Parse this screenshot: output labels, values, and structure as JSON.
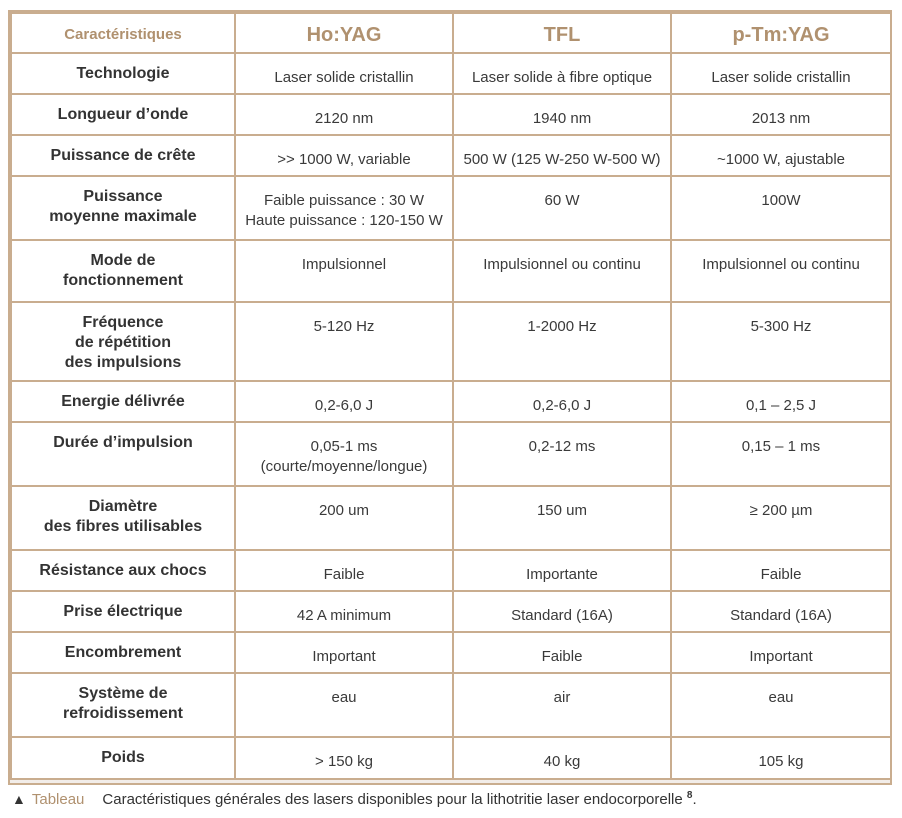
{
  "table": {
    "headers": [
      "Caractéristiques",
      "Ho:YAG",
      "TFL",
      "p-Tm:YAG"
    ],
    "rows": [
      {
        "label": [
          "Technologie"
        ],
        "values": [
          [
            "Laser solide cristallin"
          ],
          [
            "Laser solide à fibre optique"
          ],
          [
            "Laser solide cristallin"
          ]
        ]
      },
      {
        "label": [
          "Longueur d’onde"
        ],
        "values": [
          [
            "2120 nm"
          ],
          [
            "1940 nm"
          ],
          [
            "2013 nm"
          ]
        ]
      },
      {
        "label": [
          "Puissance de crête"
        ],
        "values": [
          [
            ">> 1000 W, variable"
          ],
          [
            "500 W (125 W-250 W-500 W)"
          ],
          [
            "~1000 W, ajustable"
          ]
        ]
      },
      {
        "label": [
          "Puissance",
          "moyenne maximale"
        ],
        "values": [
          [
            "Faible puissance : 30 W",
            "Haute puissance : 120-150 W"
          ],
          [
            "60 W"
          ],
          [
            "100W"
          ]
        ]
      },
      {
        "label": [
          "Mode de",
          "fonctionnement"
        ],
        "values": [
          [
            "Impulsionnel"
          ],
          [
            "Impulsionnel ou continu"
          ],
          [
            "Impulsionnel ou continu"
          ]
        ]
      },
      {
        "label": [
          "Fréquence",
          "de répétition",
          "des impulsions"
        ],
        "values": [
          [
            "5-120 Hz"
          ],
          [
            "1-2000 Hz"
          ],
          [
            "5-300 Hz"
          ]
        ]
      },
      {
        "label": [
          "Energie délivrée"
        ],
        "values": [
          [
            "0,2-6,0 J"
          ],
          [
            "0,2-6,0 J"
          ],
          [
            "0,1 – 2,5 J"
          ]
        ]
      },
      {
        "label": [
          "Durée d’impulsion"
        ],
        "values": [
          [
            "0,05-1 ms",
            "(courte/moyenne/longue)"
          ],
          [
            "0,2-12 ms"
          ],
          [
            "0,15 – 1 ms"
          ]
        ]
      },
      {
        "label": [
          "Diamètre",
          "des fibres utilisables"
        ],
        "values": [
          [
            "200 um"
          ],
          [
            "150 um"
          ],
          [
            "≥ 200 µm"
          ]
        ]
      },
      {
        "label": [
          "Résistance aux chocs"
        ],
        "values": [
          [
            "Faible"
          ],
          [
            "Importante"
          ],
          [
            "Faible"
          ]
        ]
      },
      {
        "label": [
          "Prise électrique"
        ],
        "values": [
          [
            "42 A minimum"
          ],
          [
            "Standard (16A)"
          ],
          [
            "Standard (16A)"
          ]
        ]
      },
      {
        "label": [
          "Encombrement"
        ],
        "values": [
          [
            "Important"
          ],
          [
            "Faible"
          ],
          [
            "Important"
          ]
        ]
      },
      {
        "label": [
          "Système de",
          "refroidissement"
        ],
        "values": [
          [
            "eau"
          ],
          [
            "air"
          ],
          [
            "eau"
          ]
        ]
      },
      {
        "label": [
          "Poids"
        ],
        "values": [
          [
            "> 150 kg"
          ],
          [
            "40 kg"
          ],
          [
            "105 kg"
          ]
        ]
      }
    ]
  },
  "caption": {
    "icon": "triangle-up-icon",
    "label": "Tableau",
    "text": "Caractéristiques générales des lasers disponibles pour la lithotritie laser endocorporelle",
    "ref": "8",
    "end": "."
  },
  "colors": {
    "accent": "#b0916f",
    "border": "#c9ad8f",
    "text": "#333333"
  }
}
